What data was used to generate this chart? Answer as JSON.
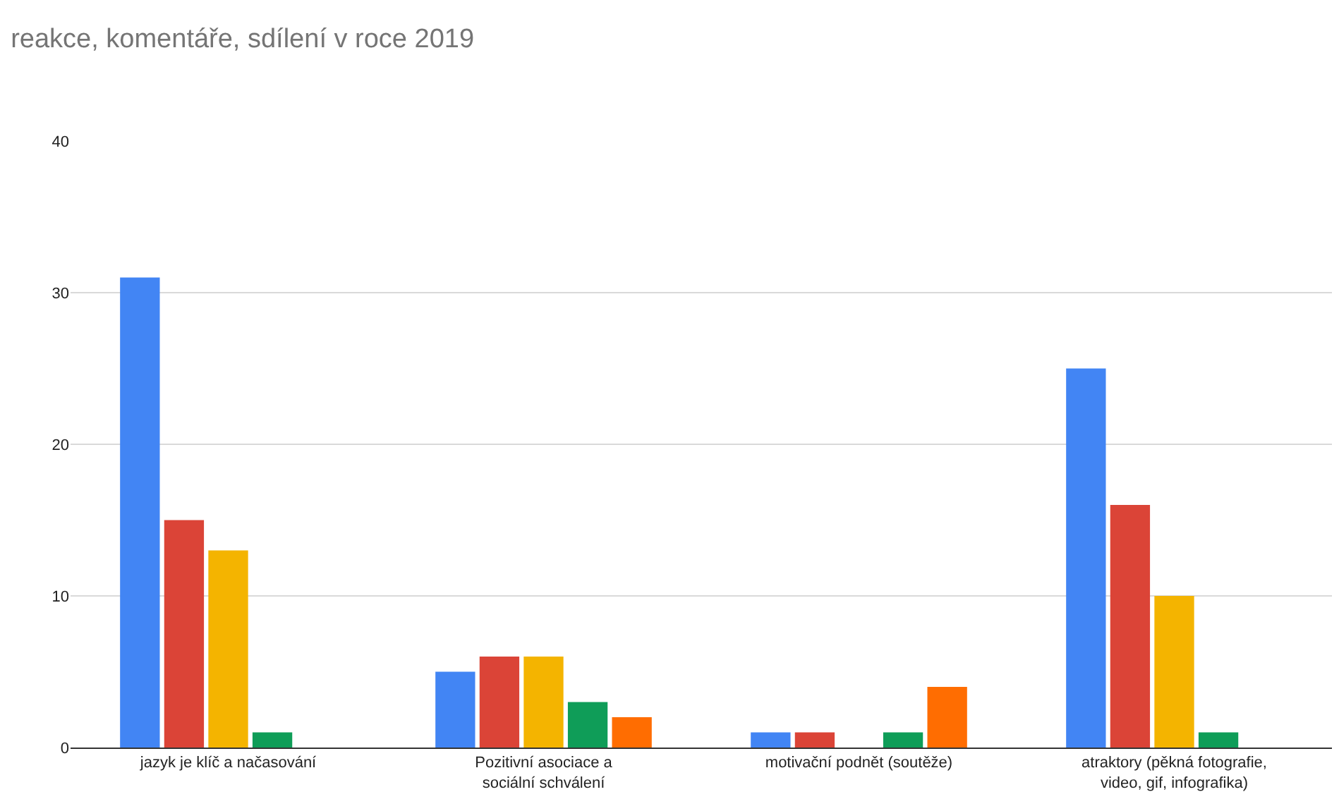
{
  "chart_data": {
    "type": "bar",
    "title": "reakce, komentáře, sdílení v roce 2019",
    "categories": [
      "jazyk je klíč a načasování",
      "Pozitivní asociace a sociální schválení",
      "motivační podnět (soutěže)",
      "atraktory (pěkná fotografie, video, gif, infografika)"
    ],
    "series": [
      {
        "color": "#4285f4",
        "values": [
          31,
          5,
          1,
          25
        ]
      },
      {
        "color": "#db4437",
        "values": [
          15,
          6,
          1,
          16
        ]
      },
      {
        "color": "#f4b400",
        "values": [
          13,
          6,
          0,
          10
        ]
      },
      {
        "color": "#0f9d58",
        "values": [
          1,
          3,
          1,
          1
        ]
      },
      {
        "color": "#ff6d01",
        "values": [
          0,
          2,
          4,
          0
        ]
      }
    ],
    "ylim": [
      0,
      40
    ],
    "yticks": [
      0,
      10,
      20,
      30,
      40
    ],
    "grid": "y"
  }
}
